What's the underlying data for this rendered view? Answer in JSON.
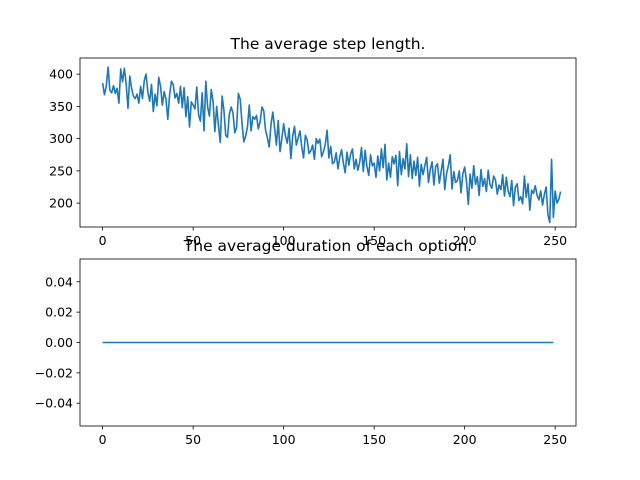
{
  "colors": {
    "series": "#1f77b4",
    "axes": "#000000",
    "background": "#ffffff"
  },
  "chart_data": [
    {
      "type": "line",
      "title": "The average step length.",
      "xlabel": "",
      "ylabel": "",
      "xlim": [
        -12.5,
        261.5
      ],
      "ylim": [
        163,
        425
      ],
      "xticks": [
        0,
        50,
        100,
        150,
        200,
        250
      ],
      "yticks": [
        200,
        250,
        300,
        350,
        400
      ],
      "grid": false,
      "legend": "none",
      "series": [
        {
          "x_start": 0,
          "x_step": 1,
          "values": [
            386,
            368,
            381,
            411,
            375,
            371,
            382,
            370,
            378,
            355,
            408,
            388,
            409,
            385,
            347,
            397,
            378,
            366,
            362,
            369,
            355,
            381,
            362,
            390,
            400,
            372,
            358,
            384,
            342,
            369,
            351,
            395,
            381,
            352,
            373,
            361,
            330,
            368,
            389,
            384,
            363,
            370,
            355,
            381,
            348,
            379,
            334,
            365,
            318,
            357,
            352,
            346,
            380,
            337,
            327,
            371,
            312,
            389,
            349,
            335,
            376,
            358,
            311,
            350,
            320,
            294,
            366,
            344,
            305,
            302,
            338,
            349,
            340,
            309,
            317,
            370,
            361,
            324,
            295,
            304,
            318,
            352,
            312,
            334,
            330,
            336,
            315,
            326,
            349,
            343,
            313,
            302,
            287,
            322,
            341,
            317,
            290,
            328,
            280,
            300,
            323,
            304,
            293,
            316,
            269,
            304,
            319,
            290,
            301,
            312,
            287,
            270,
            305,
            298,
            277,
            281,
            290,
            268,
            300,
            293,
            299,
            272,
            280,
            291,
            313,
            270,
            288,
            261,
            264,
            278,
            253,
            271,
            283,
            262,
            247,
            279,
            259,
            276,
            284,
            253,
            268,
            251,
            263,
            286,
            249,
            282,
            257,
            243,
            275,
            258,
            262,
            240,
            273,
            250,
            284,
            255,
            291,
            236,
            262,
            240,
            272,
            261,
            274,
            227,
            280,
            244,
            269,
            253,
            292,
            241,
            275,
            238,
            265,
            243,
            271,
            226,
            260,
            244,
            258,
            271,
            232,
            252,
            264,
            228,
            257,
            261,
            231,
            249,
            268,
            221,
            246,
            258,
            275,
            222,
            249,
            232,
            235,
            250,
            216,
            246,
            256,
            234,
            198,
            245,
            223,
            258,
            229,
            241,
            212,
            252,
            226,
            238,
            218,
            251,
            229,
            223,
            242,
            236,
            214,
            228,
            221,
            244,
            211,
            240,
            219,
            210,
            235,
            196,
            225,
            230,
            204,
            210,
            199,
            242,
            209,
            230,
            189,
            220,
            215,
            227,
            212,
            205,
            219,
            197,
            213,
            225,
            182,
            170,
            268,
            178,
            219,
            200,
            206,
            218
          ]
        }
      ]
    },
    {
      "type": "line",
      "title": "The average duration of each option.",
      "xlabel": "",
      "ylabel": "",
      "xlim": [
        -12.5,
        261.5
      ],
      "ylim": [
        -0.055,
        0.055
      ],
      "xticks": [
        0,
        50,
        100,
        150,
        200,
        250
      ],
      "yticks": [
        -0.04,
        -0.02,
        0.0,
        0.02,
        0.04
      ],
      "ytick_labels": [
        "−0.04",
        "−0.02",
        "0.00",
        "0.02",
        "0.04"
      ],
      "grid": false,
      "legend": "none",
      "series": [
        {
          "x": [
            0,
            249
          ],
          "values": [
            0,
            0
          ]
        }
      ]
    }
  ]
}
